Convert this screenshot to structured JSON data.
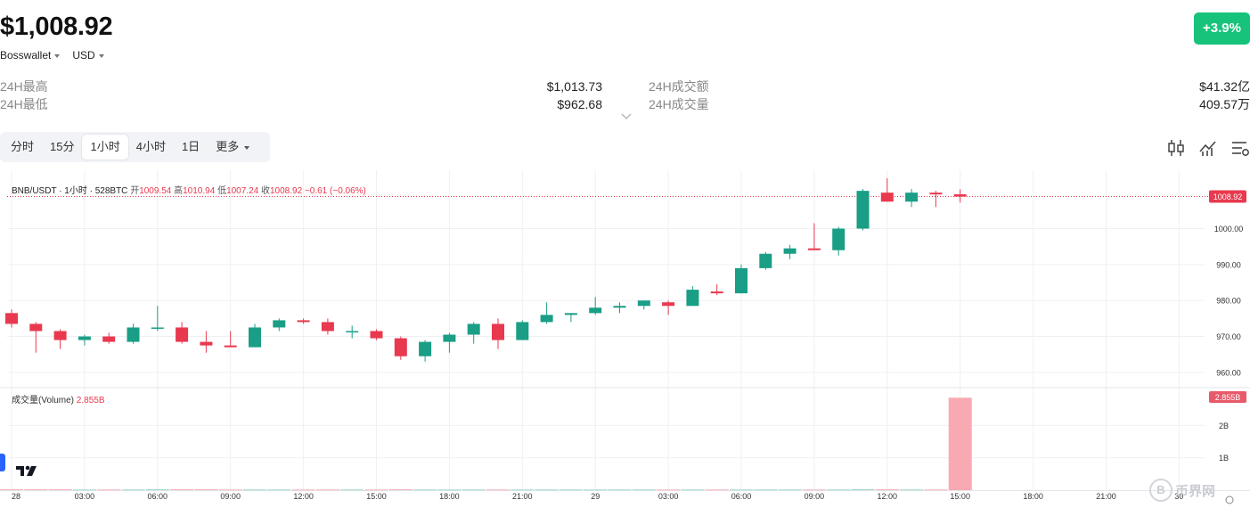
{
  "ticker": {
    "price": "$1,008.92",
    "change": "+3.9%",
    "source_label": "Bosswallet",
    "currency_label": "USD"
  },
  "stats": {
    "high_label": "24H最高",
    "high_value": "$1,013.73",
    "low_label": "24H最低",
    "low_value": "$962.68",
    "turnover_label": "24H成交额",
    "turnover_value": "$41.32亿",
    "volume_label": "24H成交量",
    "volume_value": "409.57万"
  },
  "tabs": [
    {
      "label": "分时"
    },
    {
      "label": "15分"
    },
    {
      "label": "1小时",
      "active": true
    },
    {
      "label": "4小时"
    },
    {
      "label": "1日"
    },
    {
      "label": "更多"
    }
  ],
  "toolbar_icons": [
    "candlestick-icon",
    "indicator-icon",
    "settings-icon"
  ],
  "chart_header": {
    "symbol": "BNB/USDT · 1小时 · 528BTC",
    "open_label": "开",
    "open": "1009.54",
    "high_label": "高",
    "high": "1010.94",
    "low_label": "低",
    "low": "1007.24",
    "close_label": "收",
    "close": "1008.92",
    "change": "−0.61 (−0.06%)"
  },
  "volume_header": {
    "label": "成交量(Volume)",
    "value": "2.855B"
  },
  "watermark": "币界网",
  "chart_data": {
    "type": "candlestick",
    "symbol": "BNB/USDT",
    "interval": "1小时",
    "price_axis": {
      "ticks": [
        960,
        970,
        980,
        990,
        1000
      ],
      "tick_labels": [
        "960.00",
        "970.00",
        "980.00",
        "990.00",
        "1000.00"
      ],
      "range": [
        956.5,
        1015
      ],
      "current_price_label": "1008.92"
    },
    "volume_axis": {
      "ticks": [
        1,
        2
      ],
      "tick_labels": [
        "1B",
        "2B"
      ],
      "current_label": "2.855B",
      "range": [
        0,
        3
      ]
    },
    "x_labels": [
      {
        "label": "28",
        "t": 0
      },
      {
        "label": "03:00",
        "t": 3
      },
      {
        "label": "06:00",
        "t": 6
      },
      {
        "label": "09:00",
        "t": 9
      },
      {
        "label": "12:00",
        "t": 12
      },
      {
        "label": "15:00",
        "t": 15
      },
      {
        "label": "18:00",
        "t": 18
      },
      {
        "label": "21:00",
        "t": 21
      },
      {
        "label": "29",
        "t": 24
      },
      {
        "label": "03:00",
        "t": 27
      },
      {
        "label": "06:00",
        "t": 30
      },
      {
        "label": "09:00",
        "t": 33
      },
      {
        "label": "12:00",
        "t": 36
      },
      {
        "label": "15:00",
        "t": 39
      },
      {
        "label": "18:00",
        "t": 42
      },
      {
        "label": "21:00",
        "t": 45
      },
      {
        "label": "30",
        "t": 48
      }
    ],
    "candles": [
      {
        "o": 976.5,
        "h": 977.5,
        "l": 972.5,
        "c": 973.5
      },
      {
        "o": 973.5,
        "h": 974.0,
        "l": 965.5,
        "c": 971.5
      },
      {
        "o": 971.5,
        "h": 972.0,
        "l": 966.5,
        "c": 969.0
      },
      {
        "o": 969.0,
        "h": 970.5,
        "l": 967.5,
        "c": 970.0
      },
      {
        "o": 970.0,
        "h": 971.0,
        "l": 968.0,
        "c": 968.5
      },
      {
        "o": 968.5,
        "h": 973.5,
        "l": 968.0,
        "c": 972.5
      },
      {
        "o": 972.5,
        "h": 978.5,
        "l": 971.5,
        "c": 972.5
      },
      {
        "o": 972.5,
        "h": 974.0,
        "l": 968.0,
        "c": 968.5
      },
      {
        "o": 968.5,
        "h": 971.5,
        "l": 965.5,
        "c": 967.5
      },
      {
        "o": 967.5,
        "h": 971.5,
        "l": 967.0,
        "c": 967.0
      },
      {
        "o": 967.0,
        "h": 973.5,
        "l": 967.0,
        "c": 972.5
      },
      {
        "o": 972.5,
        "h": 975.0,
        "l": 971.5,
        "c": 974.5
      },
      {
        "o": 974.5,
        "h": 975.0,
        "l": 973.5,
        "c": 974.0
      },
      {
        "o": 974.0,
        "h": 975.0,
        "l": 970.5,
        "c": 971.5
      },
      {
        "o": 971.5,
        "h": 973.0,
        "l": 969.5,
        "c": 971.5
      },
      {
        "o": 971.5,
        "h": 972.0,
        "l": 969.0,
        "c": 969.5
      },
      {
        "o": 969.5,
        "h": 970.0,
        "l": 963.5,
        "c": 964.5
      },
      {
        "o": 964.5,
        "h": 969.0,
        "l": 963.0,
        "c": 968.5
      },
      {
        "o": 968.5,
        "h": 971.0,
        "l": 965.5,
        "c": 970.5
      },
      {
        "o": 970.5,
        "h": 974.0,
        "l": 968.0,
        "c": 973.5
      },
      {
        "o": 973.5,
        "h": 975.0,
        "l": 966.5,
        "c": 969.0
      },
      {
        "o": 969.0,
        "h": 974.5,
        "l": 969.0,
        "c": 974.0
      },
      {
        "o": 974.0,
        "h": 979.5,
        "l": 973.5,
        "c": 976.0
      },
      {
        "o": 976.0,
        "h": 976.5,
        "l": 974.0,
        "c": 976.5
      },
      {
        "o": 976.5,
        "h": 981.0,
        "l": 976.0,
        "c": 978.0
      },
      {
        "o": 978.0,
        "h": 979.5,
        "l": 976.5,
        "c": 978.5
      },
      {
        "o": 978.5,
        "h": 980.0,
        "l": 977.5,
        "c": 980.0
      },
      {
        "o": 979.5,
        "h": 980.0,
        "l": 976.0,
        "c": 978.5
      },
      {
        "o": 978.5,
        "h": 984.0,
        "l": 978.5,
        "c": 983.0
      },
      {
        "o": 982.5,
        "h": 984.5,
        "l": 981.5,
        "c": 982.0
      },
      {
        "o": 982.0,
        "h": 990.0,
        "l": 982.0,
        "c": 989.0
      },
      {
        "o": 989.0,
        "h": 993.5,
        "l": 988.5,
        "c": 993.0
      },
      {
        "o": 993.0,
        "h": 995.5,
        "l": 991.5,
        "c": 994.5
      },
      {
        "o": 994.5,
        "h": 1001.5,
        "l": 994.0,
        "c": 994.0
      },
      {
        "o": 994.0,
        "h": 1000.5,
        "l": 992.5,
        "c": 1000.0
      },
      {
        "o": 1000.0,
        "h": 1011.0,
        "l": 999.5,
        "c": 1010.5
      },
      {
        "o": 1010.0,
        "h": 1014.0,
        "l": 1007.5,
        "c": 1007.5
      },
      {
        "o": 1007.5,
        "h": 1011.0,
        "l": 1006.0,
        "c": 1010.0
      },
      {
        "o": 1010.0,
        "h": 1010.5,
        "l": 1006.0,
        "c": 1009.5
      },
      {
        "o": 1009.54,
        "h": 1010.94,
        "l": 1007.24,
        "c": 1008.92
      }
    ],
    "volumes": [
      0.03,
      0.03,
      0.03,
      0.02,
      0.02,
      0.02,
      0.03,
      0.03,
      0.03,
      0.02,
      0.02,
      0.02,
      0.02,
      0.02,
      0.02,
      0.02,
      0.03,
      0.02,
      0.02,
      0.02,
      0.02,
      0.02,
      0.02,
      0.02,
      0.02,
      0.02,
      0.02,
      0.02,
      0.02,
      0.02,
      0.02,
      0.02,
      0.02,
      0.02,
      0.02,
      0.03,
      0.03,
      0.02,
      0.02,
      2.855
    ],
    "colors": {
      "up": "#1a9e86",
      "down": "#e8394f",
      "volume_last": "#f8a9b1",
      "grid": "#f0f0f3"
    },
    "grid": true
  }
}
